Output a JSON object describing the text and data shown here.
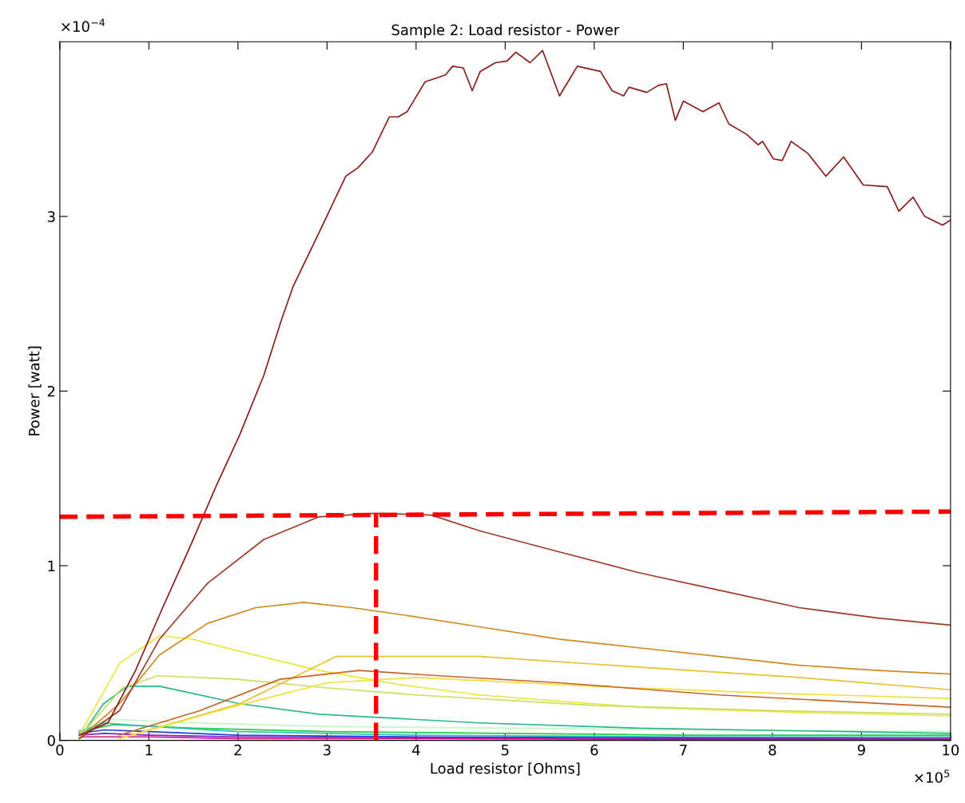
{
  "chart_data": {
    "type": "line",
    "title": "Sample 2: Load resistor - Power",
    "xlabel": "Load resistor [Ohms]",
    "ylabel": "Power [watt]",
    "annotations": [
      "×10$^{−4}$",
      "×10$^{5}$"
    ],
    "xlim": [
      0,
      10
    ],
    "xticks": [
      0,
      1,
      2,
      3,
      4,
      5,
      6,
      7,
      8,
      9,
      10
    ],
    "ylim": [
      0,
      4
    ],
    "yticks": [
      0,
      1,
      2,
      3
    ],
    "grid": false,
    "series": [
      {
        "color": "#c8f5c8",
        "x": [
          0.22,
          0.6,
          1.5,
          3,
          5,
          7,
          10
        ],
        "values": [
          0.06,
          0.12,
          0.1,
          0.08,
          0.07,
          0.06,
          0.05
        ]
      },
      {
        "color": "#20d040",
        "x": [
          0.22,
          0.6,
          1.5,
          3,
          5,
          7,
          10
        ],
        "values": [
          0.05,
          0.09,
          0.07,
          0.05,
          0.04,
          0.03,
          0.03
        ]
      },
      {
        "color": "#30c0c0",
        "x": [
          0.22,
          0.5,
          1,
          2,
          4,
          7,
          10
        ],
        "values": [
          0.05,
          0.1,
          0.08,
          0.05,
          0.03,
          0.02,
          0.02
        ]
      },
      {
        "color": "#2040e0",
        "x": [
          0.22,
          0.5,
          1,
          2,
          4,
          7,
          10
        ],
        "values": [
          0.04,
          0.06,
          0.05,
          0.03,
          0.02,
          0.015,
          0.01
        ]
      },
      {
        "color": "#8020c0",
        "x": [
          0.22,
          0.5,
          1,
          2,
          4,
          7,
          10
        ],
        "values": [
          0.03,
          0.04,
          0.03,
          0.02,
          0.015,
          0.01,
          0.01
        ]
      },
      {
        "color": "#e01080",
        "x": [
          0.22,
          0.5,
          1,
          2,
          4,
          7,
          10
        ],
        "values": [
          0.02,
          0.02,
          0.02,
          0.01,
          0.01,
          0.005,
          0.005
        ]
      },
      {
        "color": "#2ab890",
        "x": [
          0.22,
          0.49,
          0.76,
          1.12,
          2.02,
          2.91,
          4.71,
          6.5,
          10
        ],
        "values": [
          0.01,
          0.21,
          0.31,
          0.31,
          0.21,
          0.15,
          0.1,
          0.07,
          0.04
        ]
      },
      {
        "color": "#e8e840",
        "x": [
          0.22,
          0.67,
          1.12,
          1.48,
          2.02,
          2.91,
          3.8,
          4.71,
          6.5,
          8.3,
          10
        ],
        "values": [
          0.03,
          0.44,
          0.6,
          0.58,
          0.51,
          0.4,
          0.32,
          0.26,
          0.19,
          0.16,
          0.14
        ]
      },
      {
        "color": "#c8e060",
        "x": [
          0.22,
          0.7,
          1.1,
          2,
          3,
          4,
          6,
          8,
          10
        ],
        "values": [
          0.02,
          0.3,
          0.37,
          0.35,
          0.3,
          0.26,
          0.2,
          0.17,
          0.15
        ]
      },
      {
        "color": "#e8c030",
        "x": [
          0.67,
          2.02,
          3.1,
          4.71,
          6.5,
          8.3,
          10
        ],
        "values": [
          0.01,
          0.21,
          0.48,
          0.48,
          0.42,
          0.36,
          0.29
        ]
      },
      {
        "color": "#f0e040",
        "x": [
          0.67,
          2,
          3,
          4,
          6,
          8,
          10
        ],
        "values": [
          0.01,
          0.2,
          0.33,
          0.36,
          0.31,
          0.27,
          0.24
        ]
      },
      {
        "color": "#c86428",
        "x": [
          0.67,
          1.57,
          2.47,
          3.36,
          4.26,
          5.6,
          7.4,
          10
        ],
        "values": [
          0.03,
          0.17,
          0.35,
          0.4,
          0.37,
          0.33,
          0.26,
          0.19
        ]
      },
      {
        "color": "#d08a20",
        "x": [
          0.22,
          0.67,
          1.12,
          1.66,
          2.2,
          2.74,
          3.28,
          3.83,
          4.71,
          5.6,
          6.5,
          7.4,
          8.3,
          9.19,
          10
        ],
        "values": [
          0.01,
          0.21,
          0.49,
          0.67,
          0.76,
          0.79,
          0.76,
          0.72,
          0.65,
          0.58,
          0.53,
          0.48,
          0.43,
          0.4,
          0.38
        ]
      },
      {
        "color": "#a03a28",
        "x": [
          0.22,
          0.67,
          1.12,
          1.66,
          2.29,
          2.91,
          3.54,
          4.17,
          4.71,
          5.6,
          6.5,
          7.4,
          8.3,
          9.19,
          10
        ],
        "values": [
          0.01,
          0.17,
          0.58,
          0.9,
          1.15,
          1.28,
          1.3,
          1.29,
          1.2,
          1.08,
          0.96,
          0.86,
          0.76,
          0.7,
          0.66
        ]
      },
      {
        "color": "#8b1a1a",
        "x": [
          0.22,
          0.54,
          0.85,
          1.12,
          1.48,
          1.75,
          2.02,
          2.29,
          2.49,
          2.62,
          2.95,
          3.21,
          3.35,
          3.51,
          3.7,
          3.8,
          3.9,
          4.1,
          4.33,
          4.41,
          4.53,
          4.63,
          4.72,
          4.89,
          5.02,
          5.12,
          5.28,
          5.42,
          5.61,
          5.81,
          6.07,
          6.2,
          6.33,
          6.39,
          6.59,
          6.72,
          6.81,
          6.91,
          7.0,
          7.22,
          7.4,
          7.51,
          7.71,
          7.84,
          7.89,
          8.01,
          8.11,
          8.21,
          8.4,
          8.6,
          8.8,
          9.02,
          9.29,
          9.42,
          9.58,
          9.71,
          9.91,
          10
        ],
        "values": [
          0.03,
          0.1,
          0.4,
          0.72,
          1.13,
          1.45,
          1.75,
          2.09,
          2.41,
          2.6,
          2.95,
          3.23,
          3.28,
          3.37,
          3.57,
          3.57,
          3.6,
          3.77,
          3.81,
          3.86,
          3.85,
          3.72,
          3.83,
          3.88,
          3.89,
          3.94,
          3.88,
          3.95,
          3.69,
          3.86,
          3.83,
          3.72,
          3.69,
          3.74,
          3.71,
          3.75,
          3.76,
          3.55,
          3.66,
          3.6,
          3.65,
          3.53,
          3.47,
          3.41,
          3.43,
          3.33,
          3.32,
          3.43,
          3.36,
          3.23,
          3.34,
          3.18,
          3.17,
          3.03,
          3.11,
          3.0,
          2.95,
          2.98
        ]
      },
      {
        "color": "#ff0000",
        "line_style": "dashed",
        "x": [
          0,
          10
        ],
        "values": [
          1.28,
          1.31
        ]
      },
      {
        "color": "#ff0000",
        "line_style": "dashed",
        "x": [
          3.55,
          3.55
        ],
        "values": [
          0,
          1.3
        ]
      }
    ]
  }
}
